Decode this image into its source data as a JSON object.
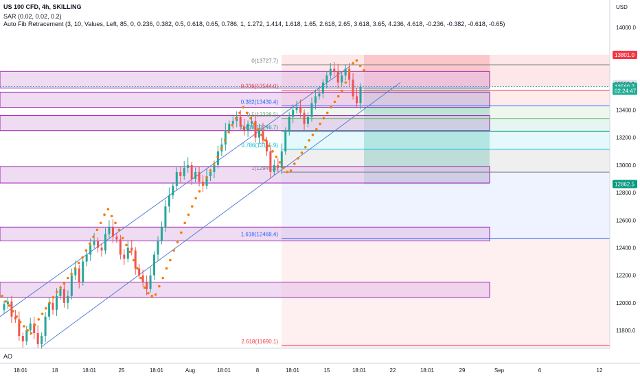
{
  "header": {
    "symbol_line": "US 100 CFD, 4h, SKILLING",
    "sar_line": "SAR (0.02, 0.02, 0.2)",
    "fib_line": "Auto Fib Retracement (3, 10, Values, Left, 85, 0, 0.236, 0.382, 0.5, 0.618, 0.65, 0.786, 1, 1.272, 1.414, 1.618, 1.65, 2.618, 2.65, 3.618, 3.65, 4.236, 4.618, -0.236, -0.382, -0.618, -0.65)"
  },
  "currency": "USD",
  "ao_label": "AO",
  "price_axis": {
    "ticks": [
      "14000.0",
      "13800.0",
      "13600.0",
      "13400.0",
      "13200.0",
      "13000.0",
      "12800.0",
      "12600.0",
      "12400.0",
      "12200.0",
      "12000.0",
      "11800.0"
    ],
    "badges": [
      {
        "text": "13801.0",
        "color": "#f23645",
        "text_color": "#ffffff"
      },
      {
        "text": "13589.0",
        "color": "#e0e3eb",
        "text_color": "#131722"
      },
      {
        "text": "13569.7",
        "color": "#22ab94",
        "text_color": "#ffffff"
      },
      {
        "text": "02:24:47",
        "color": "#22ab94",
        "text_color": "#ffffff"
      },
      {
        "text": "12862.5",
        "color": "#089981",
        "text_color": "#ffffff"
      }
    ]
  },
  "time_axis": [
    "18:01",
    "18",
    "18:01",
    "25",
    "18:01",
    "Aug",
    "18:01",
    "8",
    "18:01",
    "15",
    "18:01",
    "22",
    "18:01",
    "29",
    "Sep",
    "6",
    "12"
  ],
  "fib_labels": [
    "0(13727.7)",
    "0.236(13544.0)",
    "0.382(13430.4)",
    "0.5(13338.5)",
    "0.618(13246.7)",
    "0.786(13115.9)",
    "1(12949.4)",
    "1.618(12468.4)",
    "2.618(11690.1)"
  ],
  "colors": {
    "up": "#26a69a",
    "down": "#ef5350",
    "sar": "#f57c00",
    "zone_fill": "#e1bee7",
    "zone_border": "#9c27b0",
    "channel": "#5b7fd6"
  },
  "chart_data": {
    "type": "candlestick",
    "title": "US 100 CFD, 4h, SKILLING",
    "ylim": [
      11680,
      14120
    ],
    "ohlc_close_path": [
      11990,
      12010,
      11900,
      11880,
      11760,
      11720,
      11800,
      11850,
      11780,
      11700,
      11760,
      11900,
      12000,
      11950,
      12050,
      12100,
      12000,
      12050,
      12200,
      12250,
      12150,
      12300,
      12350,
      12420,
      12450,
      12400,
      12380,
      12500,
      12550,
      12480,
      12460,
      12350,
      12320,
      12400,
      12380,
      12250,
      12200,
      12150,
      12100,
      12200,
      12350,
      12450,
      12550,
      12700,
      12780,
      12850,
      12950,
      12920,
      12980,
      13000,
      12900,
      12950,
      12880,
      12850,
      12920,
      12950,
      13000,
      13100,
      13150,
      13250,
      13300,
      13320,
      13350,
      13280,
      13250,
      13300,
      13320,
      13200,
      13250,
      13180,
      13100,
      12950,
      13000,
      12980,
      13100,
      13250,
      13350,
      13400,
      13420,
      13380,
      13300,
      13350,
      13450,
      13500,
      13520,
      13600,
      13650,
      13700,
      13680,
      13600,
      13650,
      13700,
      13620,
      13500,
      13450,
      13569.7
    ],
    "sar_path": [
      12050,
      12010,
      11980,
      11940,
      11900,
      11860,
      11830,
      11800,
      11780,
      11840,
      11880,
      11920,
      11960,
      12000,
      12040,
      12080,
      12110,
      12140,
      12180,
      12210,
      12250,
      12290,
      12330,
      12380,
      12430,
      12480,
      12530,
      12580,
      12640,
      12680,
      12630,
      12580,
      12530,
      12470,
      12420,
      12370,
      12310,
      12250,
      12180,
      12110,
      12070,
      12050,
      12060,
      12120,
      12180,
      12250,
      12310,
      12380,
      12440,
      12510,
      12580,
      12640,
      12700,
      12760,
      12810,
      12860,
      12910,
      12960,
      13010,
      13060,
      13120,
      13180,
      13240,
      13290,
      13340,
      13380,
      13420,
      13380,
      13340,
      13300,
      13260,
      13220,
      13180,
      13140,
      13100,
      13060,
      13020,
      12980,
      12950,
      12960,
      13010,
      13050,
      13090,
      13130,
      13180,
      13220,
      13260,
      13300,
      13340,
      13380,
      13420,
      13460,
      13500,
      13540,
      13600,
      13680,
      13740,
      13760,
      13720,
      13690
    ],
    "fib_levels": [
      {
        "ratio": "0",
        "price": 13727.7
      },
      {
        "ratio": "0.236",
        "price": 13544.0
      },
      {
        "ratio": "0.382",
        "price": 13430.4
      },
      {
        "ratio": "0.5",
        "price": 13338.5
      },
      {
        "ratio": "0.618",
        "price": 13246.7
      },
      {
        "ratio": "0.786",
        "price": 13115.9
      },
      {
        "ratio": "1",
        "price": 12949.4
      },
      {
        "ratio": "1.618",
        "price": 12468.4
      },
      {
        "ratio": "2.618",
        "price": 11690.1
      }
    ],
    "zones": [
      [
        13560,
        13680
      ],
      [
        13420,
        13530
      ],
      [
        13250,
        13360
      ],
      [
        12870,
        12990
      ],
      [
        12450,
        12550
      ],
      [
        12040,
        12150
      ]
    ],
    "last_price": 13569.7,
    "stop_price": 13801.0,
    "target_price": 12862.5
  }
}
